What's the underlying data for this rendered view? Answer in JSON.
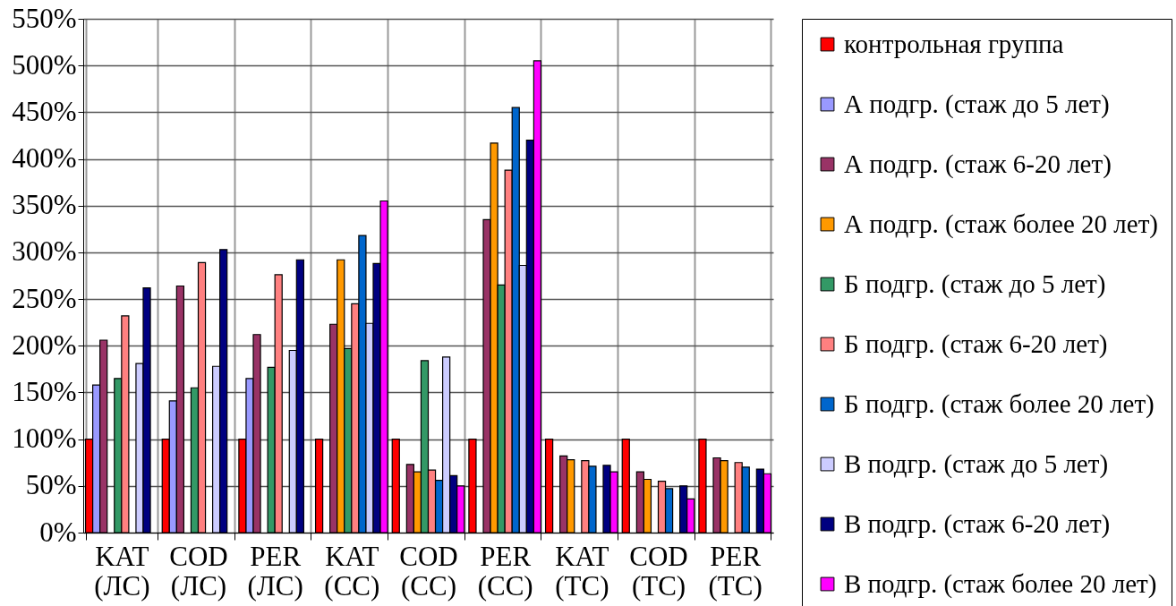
{
  "chart_data": {
    "type": "bar",
    "categories": [
      "KAT (ЛС)",
      "COD (ЛС)",
      "PER (ЛС)",
      "KAT (СС)",
      "COD (СС)",
      "PER (СС)",
      "KAT (ТС)",
      "COD (ТС)",
      "PER (ТС)"
    ],
    "series": [
      {
        "name": "контрольная группа",
        "color": "#ff0000",
        "values": [
          100,
          100,
          100,
          100,
          100,
          100,
          100,
          100,
          100
        ]
      },
      {
        "name": "А подгр. (стаж до 5 лет)",
        "color": "#9999ff",
        "values": [
          158,
          141,
          165,
          null,
          null,
          null,
          null,
          null,
          null
        ]
      },
      {
        "name": "А подгр. (стаж 6-20 лет)",
        "color": "#993366",
        "values": [
          206,
          264,
          212,
          223,
          73,
          335,
          82,
          65,
          80
        ]
      },
      {
        "name": "А подгр. (стаж более 20 лет)",
        "color": "#ff9900",
        "values": [
          null,
          null,
          null,
          292,
          65,
          417,
          78,
          57,
          77
        ]
      },
      {
        "name": "Б подгр. (стаж до 5 лет)",
        "color": "#339966",
        "values": [
          165,
          155,
          177,
          197,
          184,
          265,
          null,
          null,
          null
        ]
      },
      {
        "name": "Б подгр. (стаж 6-20 лет)",
        "color": "#ff8080",
        "values": [
          232,
          289,
          276,
          245,
          67,
          388,
          77,
          55,
          75
        ]
      },
      {
        "name": "Б подгр. (стаж более 20 лет)",
        "color": "#0066cc",
        "values": [
          null,
          null,
          null,
          318,
          56,
          455,
          71,
          47,
          70
        ]
      },
      {
        "name": "В подгр. (стаж до 5 лет)",
        "color": "#ccccff",
        "values": [
          181,
          178,
          195,
          224,
          188,
          286,
          null,
          null,
          null
        ]
      },
      {
        "name": "В подгр. (стаж 6-20 лет)",
        "color": "#000080",
        "values": [
          262,
          303,
          292,
          288,
          61,
          420,
          72,
          50,
          68
        ]
      },
      {
        "name": "В подгр. (стаж более 20 лет)",
        "color": "#ff00ff",
        "values": [
          null,
          null,
          null,
          355,
          50,
          505,
          65,
          36,
          63
        ]
      }
    ],
    "ylim": [
      0,
      550
    ],
    "yticks": [
      {
        "value": 0,
        "label": "0%"
      },
      {
        "value": 50,
        "label": "50%"
      },
      {
        "value": 100,
        "label": "100%"
      },
      {
        "value": 150,
        "label": "150%"
      },
      {
        "value": 200,
        "label": "200%"
      },
      {
        "value": 250,
        "label": "250%"
      },
      {
        "value": 300,
        "label": "300%"
      },
      {
        "value": 350,
        "label": "350%"
      },
      {
        "value": 400,
        "label": "400%"
      },
      {
        "value": 450,
        "label": "450%"
      },
      {
        "value": 500,
        "label": "500%"
      },
      {
        "value": 550,
        "label": "550%"
      }
    ],
    "grid": true,
    "legend": "right"
  }
}
